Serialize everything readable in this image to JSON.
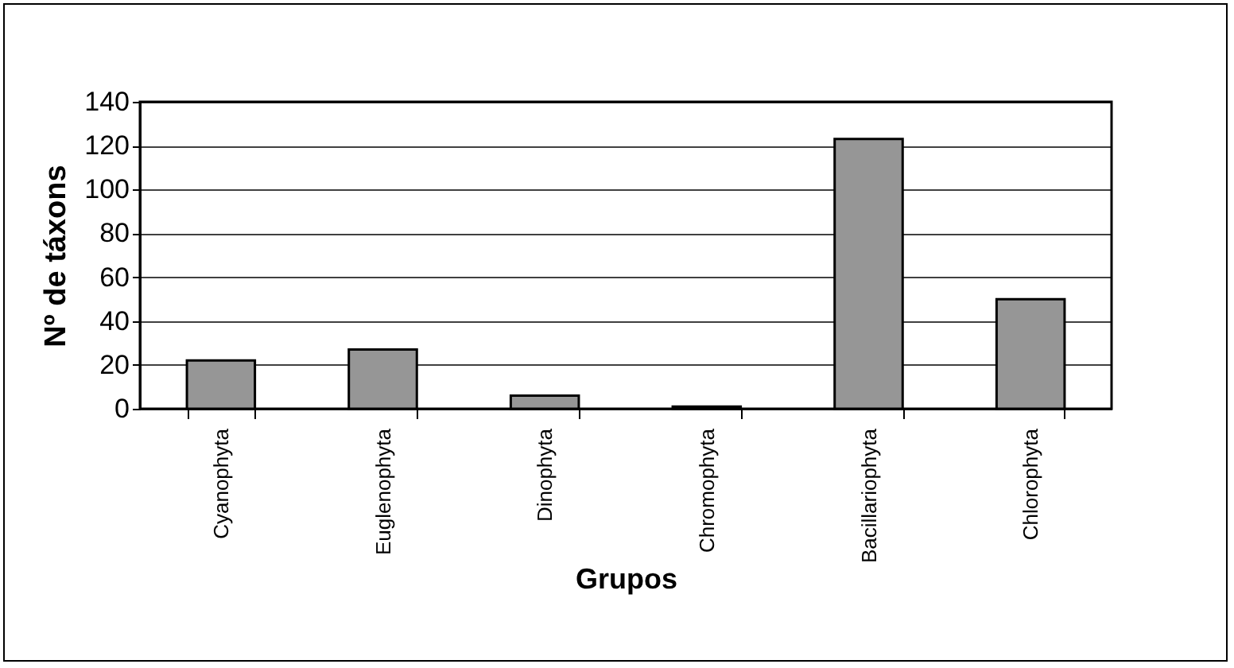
{
  "chart_data": {
    "type": "bar",
    "xlabel": "Grupos",
    "ylabel": "Nº de táxons",
    "categories": [
      "Cyanophyta",
      "Euglenophyta",
      "Dinophyta",
      "Chromophyta",
      "Bacillariophyta",
      "Chlorophyta"
    ],
    "values": [
      22,
      27,
      6,
      1,
      123,
      50
    ],
    "color": "#969696",
    "ylim": [
      0,
      140
    ],
    "yticks": [
      0,
      20,
      40,
      60,
      80,
      100,
      120,
      140
    ],
    "grid": "y"
  }
}
